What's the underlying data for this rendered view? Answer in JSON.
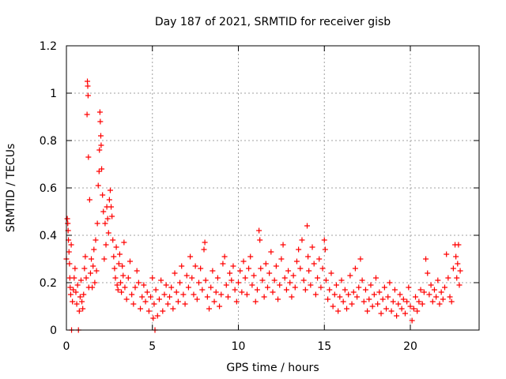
{
  "chart_data": {
    "type": "scatter",
    "title": "Day 187 of 2021, SRMTID for receiver gisb",
    "xlabel": "GPS time / hours",
    "ylabel": "SRMTID / TECUs",
    "xlim": [
      0,
      24
    ],
    "ylim": [
      0,
      1.2
    ],
    "grid": true,
    "marker": "+",
    "color": "#ff0000",
    "xticks": [
      {
        "value": 0,
        "label": "0"
      },
      {
        "value": 5,
        "label": "5"
      },
      {
        "value": 10,
        "label": "10"
      },
      {
        "value": 15,
        "label": "15"
      },
      {
        "value": 20,
        "label": "20"
      }
    ],
    "yticks": [
      {
        "value": 0,
        "label": "0"
      },
      {
        "value": 0.2,
        "label": "0.2"
      },
      {
        "value": 0.4,
        "label": "0.4"
      },
      {
        "value": 0.6,
        "label": "0.6"
      },
      {
        "value": 0.8,
        "label": "0.8"
      },
      {
        "value": 1.0,
        "label": "1"
      },
      {
        "value": 1.2,
        "label": "1.2"
      }
    ],
    "series": [
      {
        "name": "SRMTID",
        "points": [
          [
            0.0,
            0.3
          ],
          [
            0.05,
            0.47
          ],
          [
            0.08,
            0.45
          ],
          [
            0.1,
            0.42
          ],
          [
            0.12,
            0.38
          ],
          [
            0.15,
            0.33
          ],
          [
            0.18,
            0.28
          ],
          [
            0.2,
            0.22
          ],
          [
            0.22,
            0.18
          ],
          [
            0.25,
            0.15
          ],
          [
            0.28,
            0.36
          ],
          [
            0.3,
            0.0
          ],
          [
            0.35,
            0.12
          ],
          [
            0.4,
            0.17
          ],
          [
            0.45,
            0.22
          ],
          [
            0.5,
            0.26
          ],
          [
            0.55,
            0.16
          ],
          [
            0.6,
            0.11
          ],
          [
            0.65,
            0.19
          ],
          [
            0.7,
            0.0
          ],
          [
            0.75,
            0.08
          ],
          [
            0.8,
            0.14
          ],
          [
            0.85,
            0.21
          ],
          [
            0.9,
            0.12
          ],
          [
            0.95,
            0.09
          ],
          [
            1.0,
            0.15
          ],
          [
            1.05,
            0.26
          ],
          [
            1.1,
            0.31
          ],
          [
            1.15,
            0.22
          ],
          [
            1.2,
            0.91
          ],
          [
            1.22,
            1.05
          ],
          [
            1.24,
            1.03
          ],
          [
            1.26,
            0.99
          ],
          [
            1.28,
            0.73
          ],
          [
            1.3,
            0.18
          ],
          [
            1.35,
            0.55
          ],
          [
            1.4,
            0.24
          ],
          [
            1.45,
            0.3
          ],
          [
            1.5,
            0.18
          ],
          [
            1.55,
            0.27
          ],
          [
            1.6,
            0.34
          ],
          [
            1.65,
            0.2
          ],
          [
            1.7,
            0.38
          ],
          [
            1.75,
            0.25
          ],
          [
            1.8,
            0.45
          ],
          [
            1.85,
            0.61
          ],
          [
            1.9,
            0.67
          ],
          [
            1.92,
            0.76
          ],
          [
            1.95,
            0.92
          ],
          [
            1.97,
            0.88
          ],
          [
            2.0,
            0.82
          ],
          [
            2.02,
            0.78
          ],
          [
            2.05,
            0.68
          ],
          [
            2.1,
            0.57
          ],
          [
            2.15,
            0.5
          ],
          [
            2.2,
            0.3
          ],
          [
            2.25,
            0.45
          ],
          [
            2.3,
            0.36
          ],
          [
            2.35,
            0.52
          ],
          [
            2.4,
            0.47
          ],
          [
            2.45,
            0.41
          ],
          [
            2.5,
            0.55
          ],
          [
            2.55,
            0.59
          ],
          [
            2.6,
            0.52
          ],
          [
            2.65,
            0.48
          ],
          [
            2.7,
            0.38
          ],
          [
            2.75,
            0.31
          ],
          [
            2.8,
            0.26
          ],
          [
            2.85,
            0.22
          ],
          [
            2.9,
            0.35
          ],
          [
            2.95,
            0.19
          ],
          [
            3.0,
            0.17
          ],
          [
            3.05,
            0.28
          ],
          [
            3.1,
            0.32
          ],
          [
            3.15,
            0.2
          ],
          [
            3.2,
            0.16
          ],
          [
            3.25,
            0.27
          ],
          [
            3.3,
            0.23
          ],
          [
            3.35,
            0.37
          ],
          [
            3.4,
            0.18
          ],
          [
            3.5,
            0.13
          ],
          [
            3.6,
            0.22
          ],
          [
            3.7,
            0.29
          ],
          [
            3.8,
            0.15
          ],
          [
            3.9,
            0.11
          ],
          [
            4.0,
            0.18
          ],
          [
            4.1,
            0.25
          ],
          [
            4.2,
            0.2
          ],
          [
            4.3,
            0.09
          ],
          [
            4.4,
            0.14
          ],
          [
            4.5,
            0.19
          ],
          [
            4.6,
            0.12
          ],
          [
            4.7,
            0.16
          ],
          [
            4.8,
            0.08
          ],
          [
            4.9,
            0.14
          ],
          [
            5.0,
            0.22
          ],
          [
            5.05,
            0.05
          ],
          [
            5.1,
            0.11
          ],
          [
            5.15,
            0.0
          ],
          [
            5.2,
            0.17
          ],
          [
            5.3,
            0.06
          ],
          [
            5.4,
            0.13
          ],
          [
            5.5,
            0.21
          ],
          [
            5.6,
            0.08
          ],
          [
            5.7,
            0.15
          ],
          [
            5.8,
            0.19
          ],
          [
            5.9,
            0.11
          ],
          [
            6.0,
            0.14
          ],
          [
            6.1,
            0.18
          ],
          [
            6.2,
            0.09
          ],
          [
            6.3,
            0.24
          ],
          [
            6.4,
            0.16
          ],
          [
            6.5,
            0.12
          ],
          [
            6.6,
            0.2
          ],
          [
            6.7,
            0.27
          ],
          [
            6.8,
            0.15
          ],
          [
            6.9,
            0.11
          ],
          [
            7.0,
            0.23
          ],
          [
            7.1,
            0.18
          ],
          [
            7.2,
            0.31
          ],
          [
            7.3,
            0.22
          ],
          [
            7.4,
            0.15
          ],
          [
            7.5,
            0.27
          ],
          [
            7.6,
            0.13
          ],
          [
            7.7,
            0.2
          ],
          [
            7.8,
            0.26
          ],
          [
            7.9,
            0.17
          ],
          [
            8.0,
            0.34
          ],
          [
            8.05,
            0.37
          ],
          [
            8.1,
            0.21
          ],
          [
            8.2,
            0.14
          ],
          [
            8.3,
            0.09
          ],
          [
            8.4,
            0.18
          ],
          [
            8.5,
            0.25
          ],
          [
            8.6,
            0.12
          ],
          [
            8.7,
            0.16
          ],
          [
            8.8,
            0.22
          ],
          [
            8.9,
            0.1
          ],
          [
            9.0,
            0.15
          ],
          [
            9.1,
            0.28
          ],
          [
            9.2,
            0.31
          ],
          [
            9.3,
            0.19
          ],
          [
            9.4,
            0.14
          ],
          [
            9.5,
            0.24
          ],
          [
            9.6,
            0.21
          ],
          [
            9.7,
            0.27
          ],
          [
            9.8,
            0.17
          ],
          [
            9.9,
            0.12
          ],
          [
            10.0,
            0.2
          ],
          [
            10.1,
            0.25
          ],
          [
            10.2,
            0.16
          ],
          [
            10.3,
            0.29
          ],
          [
            10.4,
            0.22
          ],
          [
            10.5,
            0.15
          ],
          [
            10.6,
            0.26
          ],
          [
            10.7,
            0.31
          ],
          [
            10.8,
            0.19
          ],
          [
            10.9,
            0.23
          ],
          [
            11.0,
            0.12
          ],
          [
            11.1,
            0.17
          ],
          [
            11.2,
            0.42
          ],
          [
            11.25,
            0.38
          ],
          [
            11.3,
            0.26
          ],
          [
            11.4,
            0.21
          ],
          [
            11.5,
            0.14
          ],
          [
            11.6,
            0.28
          ],
          [
            11.7,
            0.18
          ],
          [
            11.8,
            0.24
          ],
          [
            11.9,
            0.33
          ],
          [
            12.0,
            0.16
          ],
          [
            12.1,
            0.21
          ],
          [
            12.2,
            0.27
          ],
          [
            12.3,
            0.13
          ],
          [
            12.4,
            0.19
          ],
          [
            12.5,
            0.3
          ],
          [
            12.6,
            0.36
          ],
          [
            12.7,
            0.22
          ],
          [
            12.8,
            0.17
          ],
          [
            12.9,
            0.25
          ],
          [
            13.0,
            0.2
          ],
          [
            13.1,
            0.14
          ],
          [
            13.2,
            0.23
          ],
          [
            13.3,
            0.18
          ],
          [
            13.4,
            0.29
          ],
          [
            13.5,
            0.34
          ],
          [
            13.6,
            0.26
          ],
          [
            13.7,
            0.38
          ],
          [
            13.8,
            0.21
          ],
          [
            13.9,
            0.17
          ],
          [
            14.0,
            0.44
          ],
          [
            14.05,
            0.31
          ],
          [
            14.1,
            0.25
          ],
          [
            14.2,
            0.19
          ],
          [
            14.3,
            0.35
          ],
          [
            14.4,
            0.28
          ],
          [
            14.5,
            0.15
          ],
          [
            14.6,
            0.22
          ],
          [
            14.7,
            0.3
          ],
          [
            14.8,
            0.18
          ],
          [
            14.9,
            0.26
          ],
          [
            15.0,
            0.38
          ],
          [
            15.05,
            0.34
          ],
          [
            15.1,
            0.21
          ],
          [
            15.2,
            0.13
          ],
          [
            15.3,
            0.17
          ],
          [
            15.4,
            0.24
          ],
          [
            15.5,
            0.1
          ],
          [
            15.6,
            0.15
          ],
          [
            15.7,
            0.19
          ],
          [
            15.8,
            0.08
          ],
          [
            15.9,
            0.14
          ],
          [
            16.0,
            0.21
          ],
          [
            16.1,
            0.12
          ],
          [
            16.2,
            0.17
          ],
          [
            16.3,
            0.09
          ],
          [
            16.4,
            0.15
          ],
          [
            16.5,
            0.23
          ],
          [
            16.6,
            0.11
          ],
          [
            16.7,
            0.16
          ],
          [
            16.8,
            0.26
          ],
          [
            16.9,
            0.14
          ],
          [
            17.0,
            0.18
          ],
          [
            17.1,
            0.3
          ],
          [
            17.2,
            0.21
          ],
          [
            17.3,
            0.12
          ],
          [
            17.4,
            0.17
          ],
          [
            17.5,
            0.08
          ],
          [
            17.6,
            0.13
          ],
          [
            17.7,
            0.19
          ],
          [
            17.8,
            0.1
          ],
          [
            17.9,
            0.15
          ],
          [
            18.0,
            0.22
          ],
          [
            18.1,
            0.11
          ],
          [
            18.2,
            0.16
          ],
          [
            18.3,
            0.07
          ],
          [
            18.4,
            0.13
          ],
          [
            18.5,
            0.18
          ],
          [
            18.6,
            0.09
          ],
          [
            18.7,
            0.14
          ],
          [
            18.8,
            0.2
          ],
          [
            18.9,
            0.08
          ],
          [
            19.0,
            0.12
          ],
          [
            19.1,
            0.17
          ],
          [
            19.2,
            0.06
          ],
          [
            19.3,
            0.11
          ],
          [
            19.4,
            0.15
          ],
          [
            19.5,
            0.09
          ],
          [
            19.6,
            0.13
          ],
          [
            19.7,
            0.07
          ],
          [
            19.8,
            0.12
          ],
          [
            19.9,
            0.18
          ],
          [
            20.0,
            0.1
          ],
          [
            20.1,
            0.04
          ],
          [
            20.2,
            0.09
          ],
          [
            20.3,
            0.14
          ],
          [
            20.4,
            0.08
          ],
          [
            20.5,
            0.12
          ],
          [
            20.6,
            0.17
          ],
          [
            20.7,
            0.11
          ],
          [
            20.8,
            0.16
          ],
          [
            20.9,
            0.3
          ],
          [
            21.0,
            0.24
          ],
          [
            21.1,
            0.15
          ],
          [
            21.2,
            0.19
          ],
          [
            21.3,
            0.12
          ],
          [
            21.4,
            0.17
          ],
          [
            21.5,
            0.14
          ],
          [
            21.6,
            0.21
          ],
          [
            21.7,
            0.11
          ],
          [
            21.8,
            0.16
          ],
          [
            21.9,
            0.13
          ],
          [
            22.0,
            0.18
          ],
          [
            22.1,
            0.32
          ],
          [
            22.2,
            0.22
          ],
          [
            22.3,
            0.14
          ],
          [
            22.4,
            0.12
          ],
          [
            22.5,
            0.26
          ],
          [
            22.6,
            0.36
          ],
          [
            22.65,
            0.31
          ],
          [
            22.7,
            0.22
          ],
          [
            22.75,
            0.28
          ],
          [
            22.8,
            0.36
          ],
          [
            22.85,
            0.19
          ],
          [
            22.9,
            0.25
          ]
        ]
      }
    ]
  }
}
